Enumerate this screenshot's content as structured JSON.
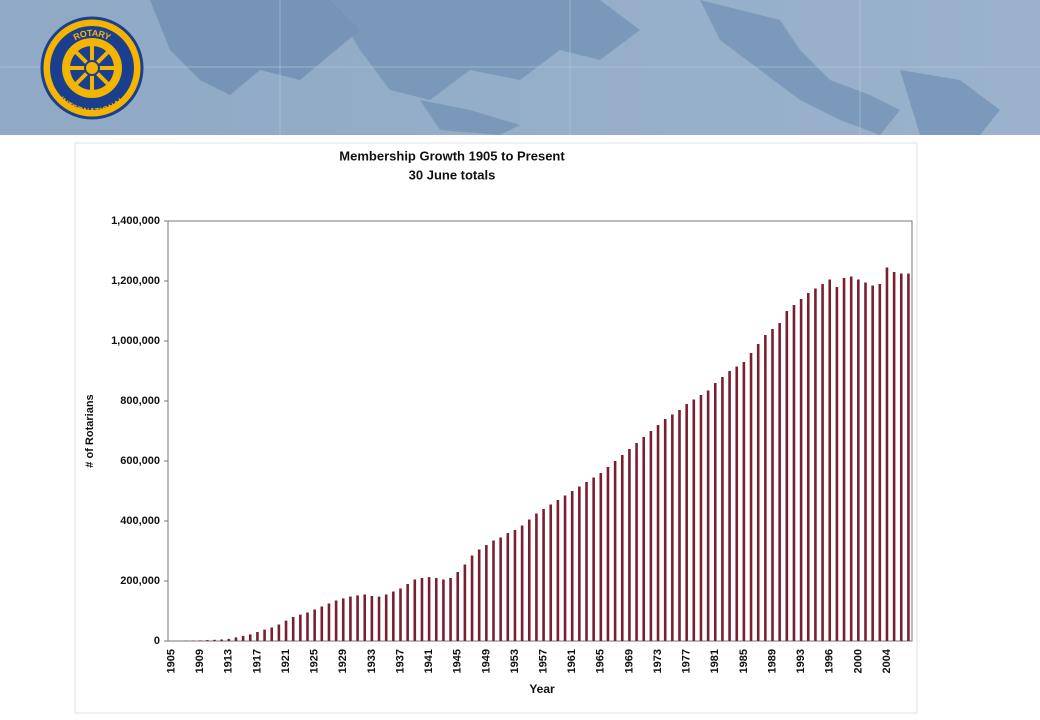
{
  "logo": {
    "top": "ROTARY",
    "bottom": "INTERNATIONAL"
  },
  "chart_data": {
    "type": "bar",
    "title": "Membership Growth 1905 to Present",
    "subtitle": "30 June totals",
    "y_label": "# of Rotarians",
    "x_label": "Year",
    "color": "#7b1f2f",
    "categories": [
      "1905",
      null,
      null,
      null,
      "1909",
      null,
      null,
      null,
      "1913",
      null,
      null,
      null,
      "1917",
      null,
      null,
      null,
      "1921",
      null,
      null,
      null,
      "1925",
      null,
      null,
      null,
      "1929",
      null,
      null,
      null,
      "1933",
      null,
      null,
      null,
      "1937",
      null,
      null,
      null,
      "1941",
      null,
      null,
      null,
      "1945",
      null,
      null,
      null,
      "1949",
      null,
      null,
      null,
      "1953",
      null,
      null,
      null,
      "1957",
      null,
      null,
      null,
      "1961",
      null,
      null,
      null,
      "1965",
      null,
      null,
      null,
      "1969",
      null,
      null,
      null,
      "1973",
      null,
      null,
      null,
      "1977",
      null,
      null,
      null,
      "1981",
      null,
      null,
      null,
      "1985",
      null,
      null,
      null,
      "1989",
      null,
      null,
      null,
      "1993",
      null,
      null,
      null,
      "1996",
      null,
      null,
      null,
      "2000",
      null,
      null,
      null,
      "2004",
      null,
      null,
      null
    ],
    "values": [
      16,
      200,
      900,
      1500,
      2000,
      3000,
      4000,
      5000,
      7000,
      12000,
      17000,
      22000,
      30000,
      38000,
      45000,
      55000,
      68000,
      80000,
      88000,
      95000,
      105000,
      115000,
      125000,
      135000,
      142000,
      148000,
      152000,
      155000,
      150000,
      148000,
      155000,
      165000,
      175000,
      190000,
      205000,
      210000,
      213000,
      210000,
      205000,
      210000,
      230000,
      255000,
      285000,
      305000,
      320000,
      335000,
      345000,
      360000,
      370000,
      385000,
      405000,
      425000,
      440000,
      455000,
      470000,
      485000,
      500000,
      515000,
      530000,
      545000,
      560000,
      580000,
      600000,
      620000,
      640000,
      660000,
      680000,
      700000,
      720000,
      740000,
      755000,
      770000,
      790000,
      805000,
      820000,
      835000,
      860000,
      880000,
      900000,
      915000,
      930000,
      960000,
      990000,
      1020000,
      1040000,
      1060000,
      1100000,
      1120000,
      1140000,
      1160000,
      1175000,
      1190000,
      1205000,
      1180000,
      1210000,
      1215000,
      1205000,
      1195000,
      1185000,
      1190000,
      1245000,
      1230000,
      1225000,
      1225000
    ],
    "ylim": [
      0,
      1400000
    ],
    "yticks": [
      0,
      {
        "value": 200000,
        "label": "200,000"
      },
      {
        "value": 400000,
        "label": "400,000"
      },
      {
        "value": 600000,
        "label": "600,000"
      },
      {
        "value": 800000,
        "label": "800,000"
      },
      {
        "value": 1000000,
        "label": "1,000,000"
      },
      {
        "value": 1200000,
        "label": "1,200,000"
      },
      {
        "value": 1400000,
        "label": "1,400,000"
      }
    ],
    "grid": false
  }
}
